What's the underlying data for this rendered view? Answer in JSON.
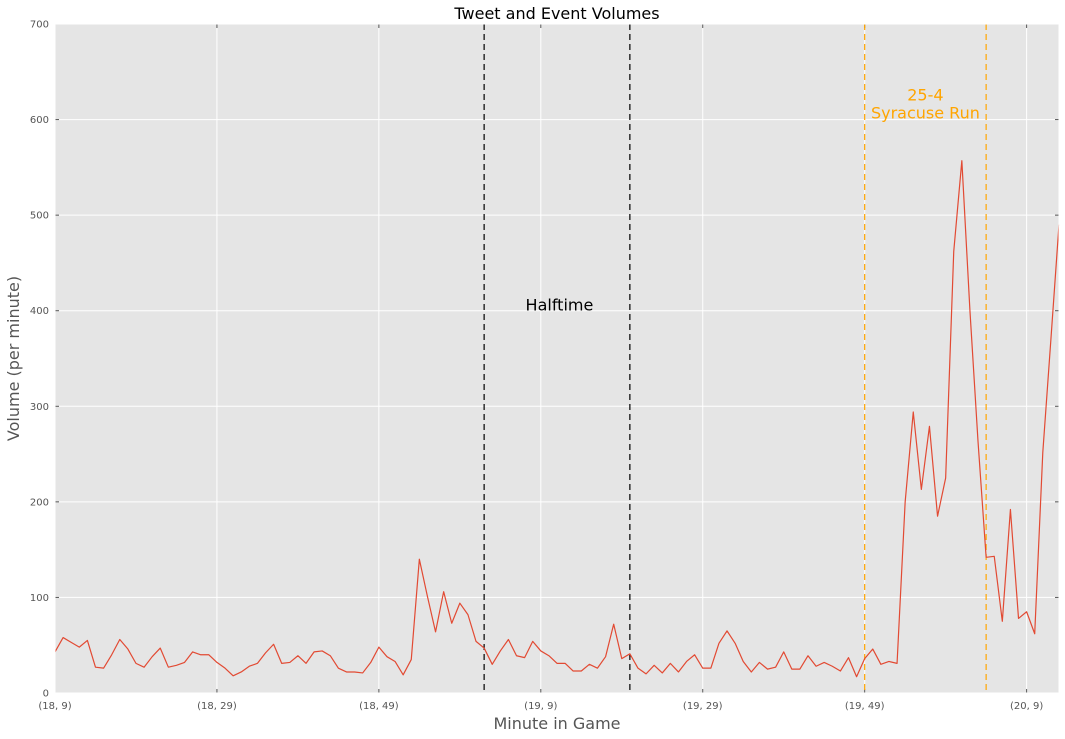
{
  "chart_data": {
    "type": "line",
    "title": "Tweet and Event Volumes",
    "xlabel": "Minute in Game",
    "ylabel": "Volume (per minute)",
    "xlim": [
      0,
      124
    ],
    "ylim": [
      0,
      700
    ],
    "grid": true,
    "background": "#e5e5e5",
    "line_color": "#e24a33",
    "x_ticks": [
      {
        "x": 0,
        "label": "(18, 9)"
      },
      {
        "x": 20,
        "label": "(18, 29)"
      },
      {
        "x": 40,
        "label": "(18, 49)"
      },
      {
        "x": 60,
        "label": "(19, 9)"
      },
      {
        "x": 80,
        "label": "(19, 29)"
      },
      {
        "x": 100,
        "label": "(19, 49)"
      },
      {
        "x": 120,
        "label": "(20, 9)"
      }
    ],
    "y_ticks": [
      0,
      100,
      200,
      300,
      400,
      500,
      600,
      700
    ],
    "series": [
      {
        "values": [
          43,
          58,
          53,
          48,
          55,
          27,
          26,
          40,
          56,
          46,
          31,
          27,
          38,
          47,
          27,
          29,
          32,
          43,
          40,
          40,
          32,
          26,
          18,
          22,
          28,
          31,
          42,
          51,
          31,
          32,
          39,
          31,
          43,
          44,
          39,
          26,
          22,
          22,
          21,
          32,
          48,
          38,
          33,
          19,
          35,
          140,
          101,
          64,
          106,
          73,
          94,
          82,
          54,
          47,
          30,
          44,
          56,
          39,
          37,
          54,
          44,
          39,
          31,
          31,
          23,
          23,
          30,
          26,
          38,
          72,
          36,
          41,
          26,
          20,
          29,
          21,
          31,
          22,
          33,
          40,
          26,
          26,
          52,
          65,
          52,
          33,
          22,
          32,
          25,
          27,
          43,
          25,
          25,
          39,
          28,
          32,
          28,
          23,
          37,
          17,
          36,
          46,
          30,
          33,
          31,
          200,
          294,
          213,
          279,
          185,
          225,
          462,
          557,
          400,
          263,
          142,
          143,
          75,
          192,
          78,
          85,
          62,
          252,
          370,
          490
        ]
      }
    ],
    "vlines": [
      {
        "x": 53,
        "color": "#000000"
      },
      {
        "x": 71,
        "color": "#000000"
      },
      {
        "x": 100,
        "color": "#ffa500"
      },
      {
        "x": 115,
        "color": "#ffa500"
      }
    ],
    "annotations": [
      {
        "lines": [
          "Halftime"
        ],
        "x": 62.3,
        "y": 400,
        "color": "#000000"
      },
      {
        "lines": [
          "25-4",
          "Syracuse Run"
        ],
        "x": 107.5,
        "y": 620,
        "color": "#ffa500"
      }
    ]
  }
}
